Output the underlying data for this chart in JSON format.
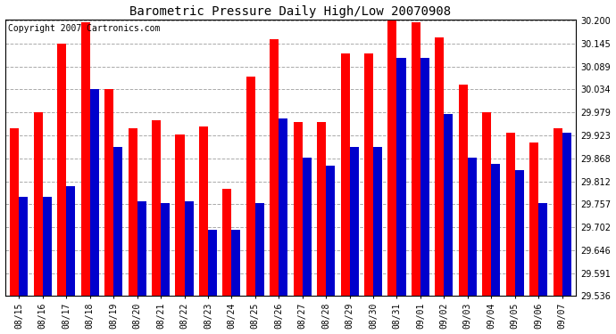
{
  "title": "Barometric Pressure Daily High/Low 20070908",
  "copyright": "Copyright 2007 Cartronics.com",
  "dates": [
    "08/15",
    "08/16",
    "08/17",
    "08/18",
    "08/19",
    "08/20",
    "08/21",
    "08/22",
    "08/23",
    "08/24",
    "08/25",
    "08/26",
    "08/27",
    "08/28",
    "08/29",
    "08/30",
    "08/31",
    "09/01",
    "09/02",
    "09/03",
    "09/04",
    "09/05",
    "09/06",
    "09/07"
  ],
  "highs": [
    29.94,
    29.98,
    30.145,
    30.195,
    30.035,
    29.94,
    29.96,
    29.925,
    29.945,
    29.795,
    30.065,
    30.155,
    29.955,
    29.955,
    30.12,
    30.12,
    30.2,
    30.195,
    30.16,
    30.045,
    29.98,
    29.93,
    29.905,
    29.94
  ],
  "lows": [
    29.775,
    29.775,
    29.8,
    30.035,
    29.895,
    29.765,
    29.76,
    29.765,
    29.695,
    29.695,
    29.76,
    29.965,
    29.87,
    29.85,
    29.895,
    29.895,
    30.11,
    30.11,
    29.975,
    29.87,
    29.855,
    29.84,
    29.76,
    29.93
  ],
  "high_color": "#ff0000",
  "low_color": "#0000cc",
  "background_color": "#ffffff",
  "grid_color": "#aaaaaa",
  "ymin": 29.536,
  "ymax": 30.2,
  "yticks": [
    29.536,
    29.591,
    29.646,
    29.702,
    29.757,
    29.812,
    29.868,
    29.923,
    29.979,
    30.034,
    30.089,
    30.145,
    30.2
  ]
}
